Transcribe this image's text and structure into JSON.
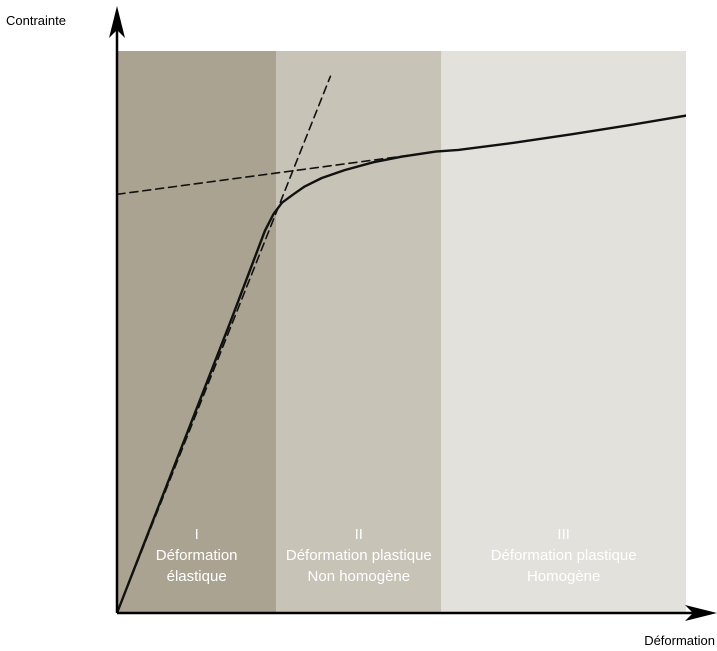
{
  "chart_data": {
    "type": "line",
    "title": "",
    "ylabel": "Contrainte",
    "xlabel": "Déformation",
    "grid": false,
    "legend": "none",
    "xlim": [
      0,
      100
    ],
    "ylim": [
      0,
      100
    ],
    "regions": [
      {
        "numeral": "I",
        "line1": "Déformation",
        "line2": "élastique",
        "x_start": 0,
        "x_end": 28,
        "color": "#aba391"
      },
      {
        "numeral": "II",
        "line1": "Déformation plastique",
        "line2": "Non homogène",
        "x_start": 28,
        "x_end": 57,
        "color": "#c7c3b7"
      },
      {
        "numeral": "III",
        "line1": "Déformation plastique",
        "line2": "Homogène",
        "x_start": 57,
        "x_end": 100,
        "color": "#e2e1db"
      }
    ],
    "series": [
      {
        "style": "solid",
        "x": [
          0,
          10,
          20,
          26,
          27.5,
          29,
          31,
          33,
          36,
          40,
          45,
          50,
          56,
          60,
          70,
          80,
          90,
          100
        ],
        "y": [
          0,
          26,
          52,
          68,
          71,
          73,
          74.5,
          75.9,
          77.4,
          78.8,
          80.2,
          81.2,
          82.1,
          82.4,
          83.7,
          85.2,
          86.8,
          88.5
        ]
      },
      {
        "style": "dashed",
        "x": [
          0,
          37.5
        ],
        "y": [
          0,
          95.5
        ]
      },
      {
        "style": "dashed",
        "x": [
          0,
          57
        ],
        "y": [
          74.5,
          82.2
        ]
      }
    ]
  }
}
